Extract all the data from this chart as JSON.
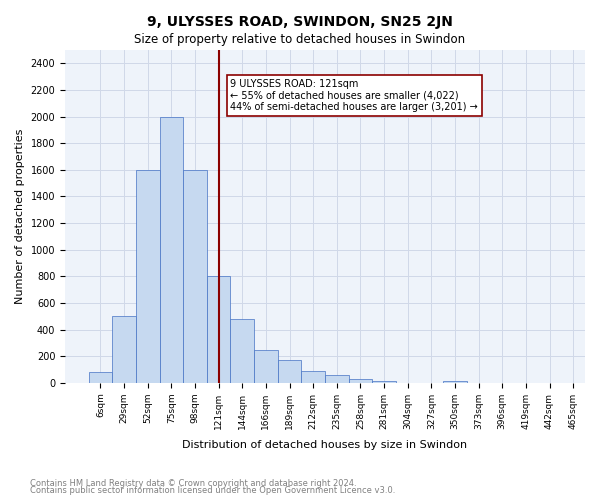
{
  "title": "9, ULYSSES ROAD, SWINDON, SN25 2JN",
  "subtitle": "Size of property relative to detached houses in Swindon",
  "xlabel": "Distribution of detached houses by size in Swindon",
  "ylabel": "Number of detached properties",
  "footnote1": "Contains HM Land Registry data © Crown copyright and database right 2024.",
  "footnote2": "Contains public sector information licensed under the Open Government Licence v3.0.",
  "property_size": 121,
  "property_label": "9 ULYSSES ROAD: 121sqm",
  "annotation_line1": "← 55% of detached houses are smaller (4,022)",
  "annotation_line2": "44% of semi-detached houses are larger (3,201) →",
  "bin_labels": [
    "6sqm",
    "29sqm",
    "52sqm",
    "75sqm",
    "98sqm",
    "121sqm",
    "144sqm",
    "166sqm",
    "189sqm",
    "212sqm",
    "235sqm",
    "258sqm",
    "281sqm",
    "304sqm",
    "327sqm",
    "350sqm",
    "373sqm",
    "396sqm",
    "419sqm",
    "442sqm",
    "465sqm"
  ],
  "bin_edges": [
    6,
    29,
    52,
    75,
    98,
    121,
    144,
    166,
    189,
    212,
    235,
    258,
    281,
    304,
    327,
    350,
    373,
    396,
    419,
    442,
    465
  ],
  "bar_heights": [
    80,
    500,
    1600,
    2000,
    1600,
    800,
    480,
    250,
    170,
    90,
    55,
    30,
    10,
    0,
    0,
    10,
    0,
    0,
    0,
    0
  ],
  "bar_color": "#c6d9f0",
  "bar_edge_color": "#4472c4",
  "line_color": "#8B0000",
  "annotation_box_edge": "#8B0000",
  "grid_color": "#d0d8e8",
  "background_color": "#eef3fa",
  "ylim": [
    0,
    2500
  ],
  "yticks": [
    0,
    200,
    400,
    600,
    800,
    1000,
    1200,
    1400,
    1600,
    1800,
    2000,
    2200,
    2400
  ]
}
